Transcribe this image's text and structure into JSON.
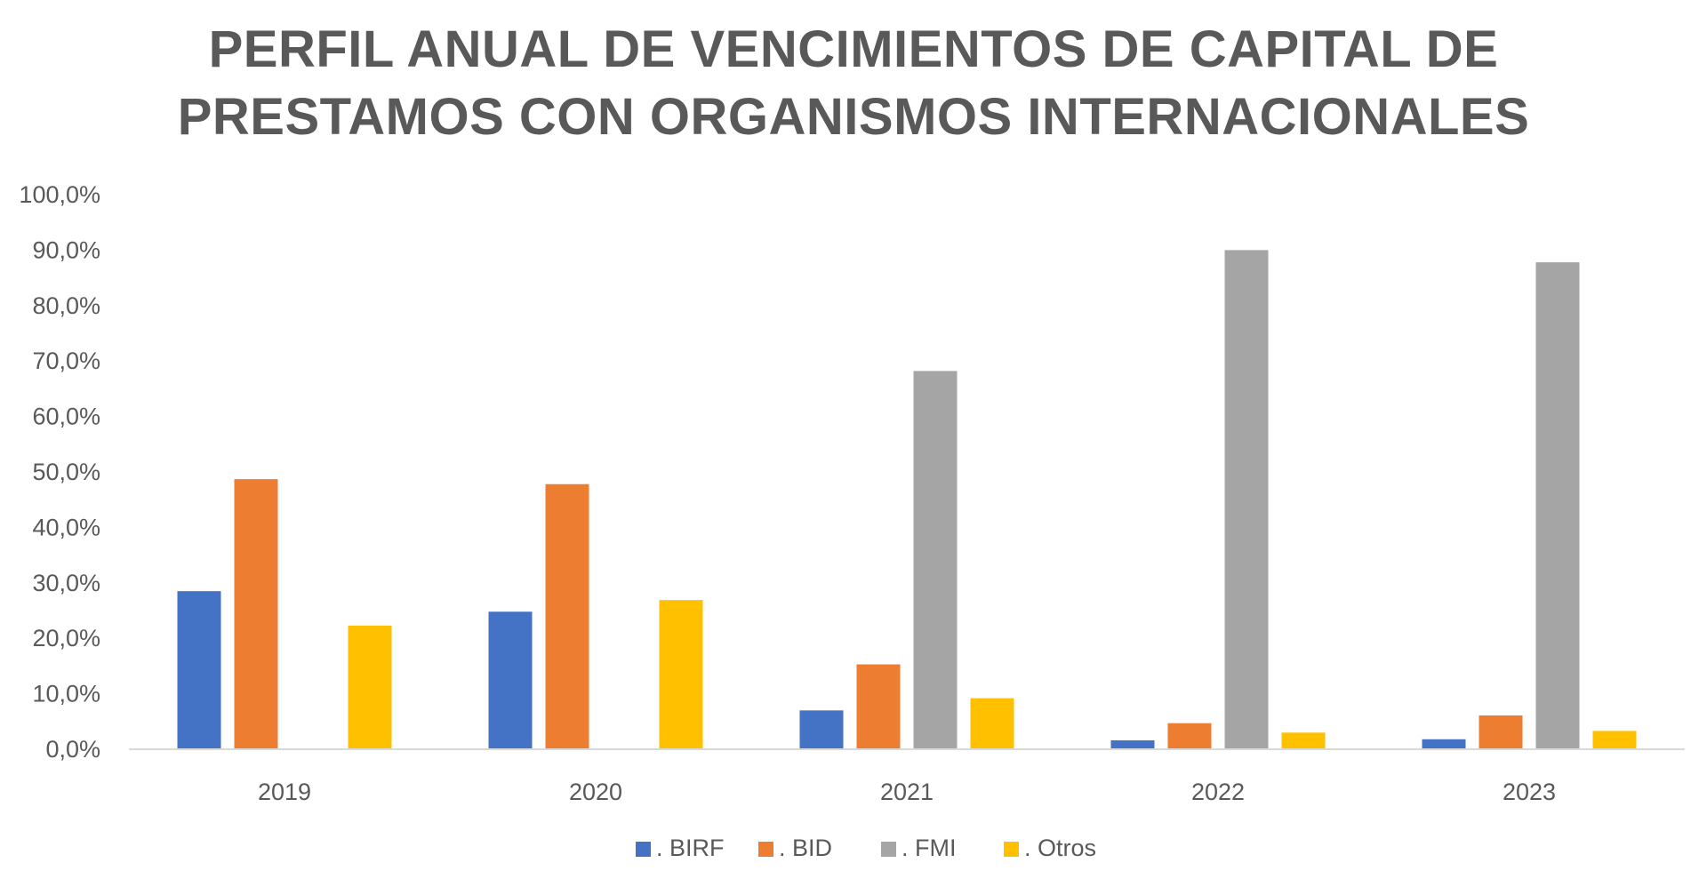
{
  "chart_data": {
    "type": "bar",
    "title_lines": [
      "PERFIL ANUAL DE VENCIMIENTOS DE CAPITAL DE",
      "PRESTAMOS CON ORGANISMOS INTERNACIONALES"
    ],
    "xlabel": "",
    "ylabel": "",
    "ylim": [
      0,
      100
    ],
    "y_ticks": [
      "0,0%",
      "10,0%",
      "20,0%",
      "30,0%",
      "40,0%",
      "50,0%",
      "60,0%",
      "70,0%",
      "80,0%",
      "90,0%",
      "100,0%"
    ],
    "y_tick_values": [
      0,
      10,
      20,
      30,
      40,
      50,
      60,
      70,
      80,
      90,
      100
    ],
    "categories": [
      "2019",
      "2020",
      "2021",
      "2022",
      "2023"
    ],
    "series": [
      {
        "name": ". BIRF",
        "color": "#4472C4",
        "values": [
          28.5,
          24.8,
          7.0,
          1.6,
          1.8
        ]
      },
      {
        "name": ". BID",
        "color": "#ED7D31",
        "values": [
          48.7,
          47.8,
          15.3,
          4.7,
          6.1
        ]
      },
      {
        "name": ". FMI",
        "color": "#A5A5A5",
        "values": [
          0,
          0,
          68.2,
          90.0,
          87.8
        ]
      },
      {
        "name": ". Otros",
        "color": "#FFC000",
        "values": [
          22.3,
          26.9,
          9.2,
          3.0,
          3.3
        ]
      }
    ],
    "grid": false,
    "legend_position": "bottom"
  }
}
